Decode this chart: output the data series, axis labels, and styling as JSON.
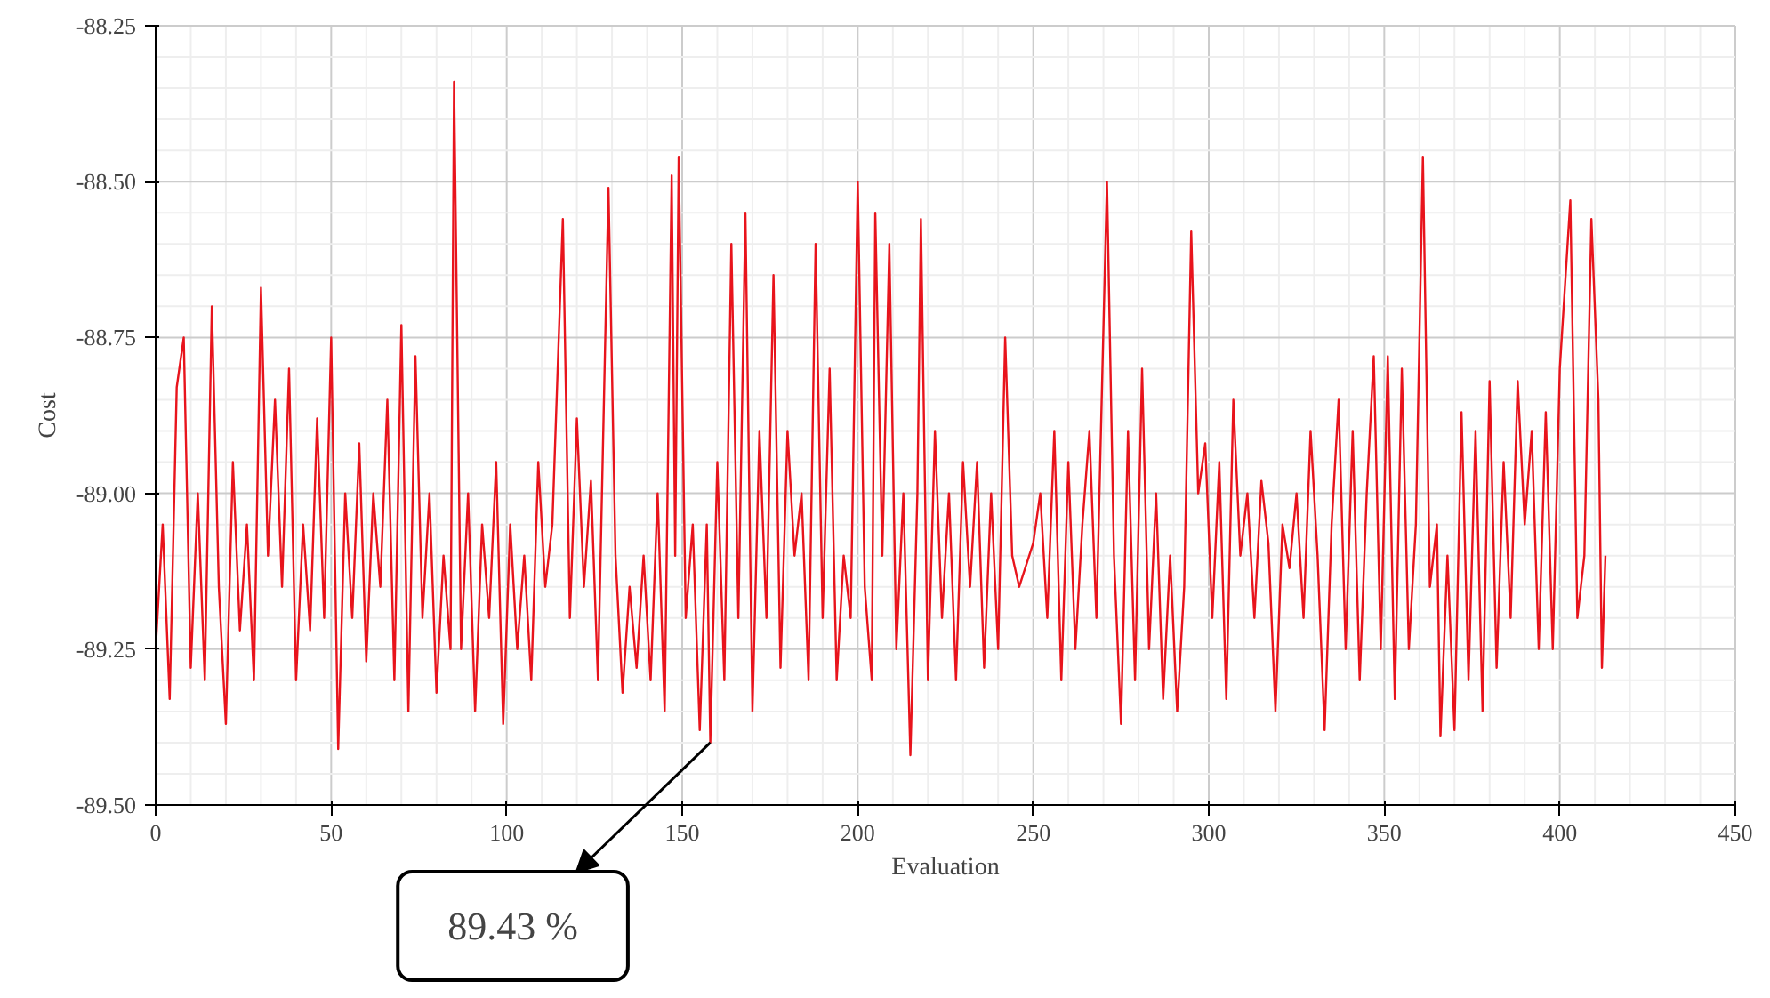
{
  "chart_data": {
    "type": "line",
    "xlabel": "Evaluation",
    "ylabel": "Cost",
    "x": [
      0,
      2,
      4,
      6,
      8,
      10,
      12,
      14,
      16,
      18,
      20,
      22,
      24,
      26,
      28,
      30,
      32,
      34,
      36,
      38,
      40,
      42,
      44,
      46,
      48,
      50,
      52,
      54,
      56,
      58,
      60,
      62,
      64,
      66,
      68,
      70,
      72,
      74,
      76,
      78,
      80,
      82,
      84,
      85,
      87,
      89,
      91,
      93,
      95,
      97,
      99,
      101,
      103,
      105,
      107,
      109,
      111,
      113,
      116,
      118,
      120,
      122,
      124,
      126,
      129,
      131,
      133,
      135,
      137,
      139,
      141,
      143,
      145,
      147,
      148,
      149,
      151,
      153,
      155,
      157,
      158,
      160,
      162,
      164,
      166,
      168,
      170,
      172,
      174,
      176,
      178,
      180,
      182,
      184,
      186,
      188,
      190,
      192,
      194,
      196,
      198,
      200,
      202,
      204,
      205,
      207,
      209,
      211,
      213,
      215,
      217,
      218,
      220,
      222,
      224,
      226,
      228,
      230,
      232,
      234,
      236,
      238,
      240,
      242,
      244,
      246,
      250,
      252,
      254,
      256,
      258,
      260,
      262,
      264,
      266,
      268,
      271,
      273,
      275,
      277,
      279,
      281,
      283,
      285,
      287,
      289,
      291,
      293,
      295,
      297,
      299,
      301,
      303,
      305,
      307,
      309,
      311,
      313,
      315,
      317,
      319,
      321,
      323,
      325,
      327,
      329,
      331,
      333,
      335,
      337,
      339,
      341,
      343,
      345,
      347,
      349,
      351,
      353,
      355,
      357,
      359,
      361,
      363,
      365,
      366,
      368,
      370,
      372,
      374,
      376,
      378,
      380,
      382,
      384,
      386,
      388,
      390,
      392,
      394,
      396,
      398,
      400,
      403,
      405,
      407,
      409,
      411,
      412,
      413
    ],
    "series": [
      {
        "color": "#e8141c",
        "values": [
          -89.25,
          -89.05,
          -89.33,
          -88.83,
          -88.75,
          -89.28,
          -89.0,
          -89.3,
          -88.7,
          -89.15,
          -89.37,
          -88.95,
          -89.22,
          -89.05,
          -89.3,
          -88.67,
          -89.1,
          -88.85,
          -89.15,
          -88.8,
          -89.3,
          -89.05,
          -89.22,
          -88.88,
          -89.2,
          -88.75,
          -89.41,
          -89.0,
          -89.2,
          -88.92,
          -89.27,
          -89.0,
          -89.15,
          -88.85,
          -89.3,
          -88.73,
          -89.35,
          -88.78,
          -89.2,
          -89.0,
          -89.32,
          -89.1,
          -89.25,
          -88.34,
          -89.25,
          -89.0,
          -89.35,
          -89.05,
          -89.2,
          -88.95,
          -89.37,
          -89.05,
          -89.25,
          -89.1,
          -89.3,
          -88.95,
          -89.15,
          -89.05,
          -88.56,
          -89.2,
          -88.88,
          -89.15,
          -88.98,
          -89.3,
          -88.51,
          -89.1,
          -89.32,
          -89.15,
          -89.28,
          -89.1,
          -89.3,
          -89.0,
          -89.35,
          -88.49,
          -89.1,
          -88.46,
          -89.2,
          -89.05,
          -89.38,
          -89.05,
          -89.4,
          -88.95,
          -89.3,
          -88.6,
          -89.2,
          -88.55,
          -89.35,
          -88.9,
          -89.2,
          -88.65,
          -89.28,
          -88.9,
          -89.1,
          -89.0,
          -89.3,
          -88.6,
          -89.2,
          -88.8,
          -89.3,
          -89.1,
          -89.2,
          -88.5,
          -89.15,
          -89.3,
          -88.55,
          -89.1,
          -88.6,
          -89.25,
          -89.0,
          -89.42,
          -89.0,
          -88.56,
          -89.3,
          -88.9,
          -89.2,
          -89.0,
          -89.3,
          -88.95,
          -89.15,
          -88.95,
          -89.28,
          -89.0,
          -89.25,
          -88.75,
          -89.1,
          -89.15,
          -89.08,
          -89.0,
          -89.2,
          -88.9,
          -89.3,
          -88.95,
          -89.25,
          -89.05,
          -88.9,
          -89.2,
          -88.5,
          -89.1,
          -89.37,
          -88.9,
          -89.3,
          -88.8,
          -89.25,
          -89.0,
          -89.33,
          -89.1,
          -89.35,
          -89.15,
          -88.58,
          -89.0,
          -88.92,
          -89.2,
          -88.95,
          -89.33,
          -88.85,
          -89.1,
          -89.0,
          -89.2,
          -88.98,
          -89.08,
          -89.35,
          -89.05,
          -89.12,
          -89.0,
          -89.2,
          -88.9,
          -89.1,
          -89.38,
          -89.05,
          -88.85,
          -89.25,
          -88.9,
          -89.3,
          -89.0,
          -88.78,
          -89.25,
          -88.78,
          -89.33,
          -88.8,
          -89.25,
          -89.05,
          -88.46,
          -89.15,
          -89.05,
          -89.39,
          -89.1,
          -89.38,
          -88.87,
          -89.3,
          -88.9,
          -89.35,
          -88.82,
          -89.28,
          -88.95,
          -89.2,
          -88.82,
          -89.05,
          -88.9,
          -89.25,
          -88.87,
          -89.25,
          -88.8,
          -88.53,
          -89.2,
          -89.1,
          -88.56,
          -88.85,
          -89.28,
          -89.1
        ]
      }
    ],
    "xlim": [
      0,
      450
    ],
    "xticks": [
      0,
      50,
      100,
      150,
      200,
      250,
      300,
      350,
      400,
      450
    ],
    "ylim": [
      -89.5,
      -88.25
    ],
    "yticks": [
      {
        "value": -89.5,
        "label": "-89.50"
      },
      {
        "value": -89.25,
        "label": "-89.25"
      },
      {
        "value": -89.0,
        "label": "-89.00"
      },
      {
        "value": -88.75,
        "label": "-88.75"
      },
      {
        "value": -88.5,
        "label": "-88.50"
      },
      {
        "value": -88.25,
        "label": "-88.25"
      }
    ],
    "grid": true,
    "marker": "none",
    "line_style": "solid",
    "annotations": [
      {
        "text": "89.43 %",
        "x": 158,
        "y": -89.4
      }
    ]
  }
}
